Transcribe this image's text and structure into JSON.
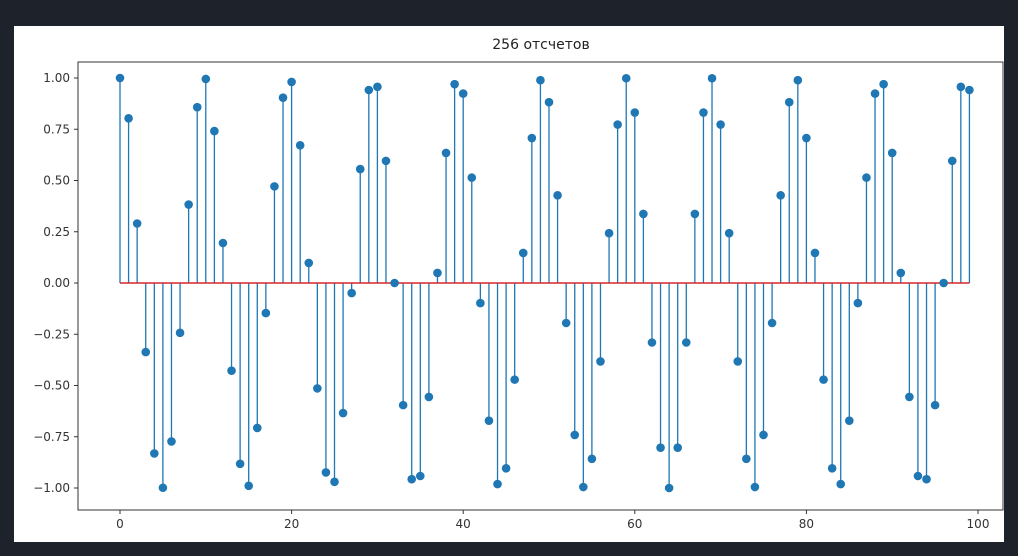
{
  "chart_data": {
    "type": "stem",
    "title": "256 отсчетов",
    "xlabel": "",
    "ylabel": "",
    "xlim": [
      -5,
      104
    ],
    "ylim": [
      -1.1,
      1.1
    ],
    "x_ticks": [
      0,
      20,
      40,
      60,
      80,
      100
    ],
    "x_tick_labels": [
      "0",
      "20",
      "40",
      "60",
      "80",
      "100"
    ],
    "y_ticks": [
      1.0,
      0.75,
      0.5,
      0.25,
      0.0,
      -0.25,
      -0.5,
      -0.75,
      -1.0
    ],
    "y_tick_labels": [
      "1.00",
      "0.75",
      "0.50",
      "0.25",
      "0.00",
      "−0.25",
      "−0.50",
      "−0.75",
      "−1.00"
    ],
    "stem_color": "#1f77b4",
    "baseline_color": "#d62728",
    "x": [
      0,
      1,
      2,
      3,
      4,
      5,
      6,
      7,
      8,
      9,
      10,
      11,
      12,
      13,
      14,
      15,
      16,
      17,
      18,
      19,
      20,
      21,
      22,
      23,
      24,
      25,
      26,
      27,
      28,
      29,
      30,
      31,
      32,
      33,
      34,
      35,
      36,
      37,
      38,
      39,
      40,
      41,
      42,
      43,
      44,
      45,
      46,
      47,
      48,
      49,
      50,
      51,
      52,
      53,
      54,
      55,
      56,
      57,
      58,
      59,
      60,
      61,
      62,
      63,
      64,
      65,
      66,
      67,
      68,
      69,
      70,
      71,
      72,
      73,
      74,
      75,
      76,
      77,
      78,
      79,
      80,
      81,
      82,
      83,
      84,
      85,
      86,
      87,
      88,
      89,
      90,
      91,
      92,
      93,
      94,
      95,
      96,
      97,
      98,
      99
    ],
    "y": [
      1.0,
      0.8032,
      0.2903,
      -0.3369,
      -0.8315,
      -0.9988,
      -0.773,
      -0.243,
      0.3827,
      0.8577,
      0.9952,
      0.741,
      0.1951,
      -0.4276,
      -0.8819,
      -0.9892,
      -0.7071,
      -0.1467,
      0.4714,
      0.904,
      0.9808,
      0.6716,
      0.098,
      -0.5141,
      -0.9239,
      -0.97,
      -0.6344,
      -0.0491,
      0.5556,
      0.9415,
      0.9569,
      0.5957,
      0.0,
      -0.5957,
      -0.9569,
      -0.9415,
      -0.5556,
      0.0491,
      0.6344,
      0.97,
      0.9239,
      0.5141,
      -0.098,
      -0.6716,
      -0.9808,
      -0.904,
      -0.4714,
      0.1467,
      0.7071,
      0.9892,
      0.8819,
      0.4276,
      -0.1951,
      -0.741,
      -0.9952,
      -0.8577,
      -0.3827,
      0.243,
      0.773,
      0.9988,
      0.8315,
      0.3369,
      -0.2903,
      -0.8032,
      -1.0,
      -0.8032,
      -0.2903,
      0.3369,
      0.8315,
      0.9988,
      0.773,
      0.243,
      -0.3827,
      -0.8577,
      -0.9952,
      -0.741,
      -0.1951,
      0.4276,
      0.8819,
      0.9892,
      0.7071,
      0.1467,
      -0.4714,
      -0.904,
      -0.9808,
      -0.6716,
      -0.098,
      0.5141,
      0.9239,
      0.97,
      0.6344,
      0.0491,
      -0.5556,
      -0.9415,
      -0.9569,
      -0.5957,
      0.0,
      0.5957,
      0.9569,
      0.9415
    ]
  }
}
